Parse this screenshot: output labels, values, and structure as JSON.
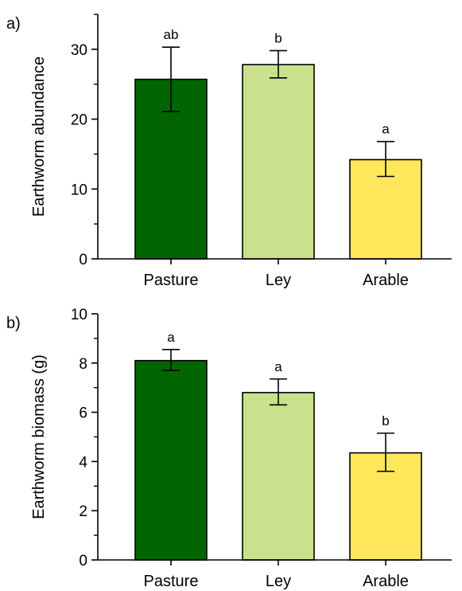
{
  "chart_data": [
    {
      "type": "bar",
      "panel_label": "a)",
      "ylabel": "Earthworm abundance",
      "ylim": [
        0,
        35
      ],
      "yticks": [
        0,
        10,
        20,
        30
      ],
      "minor_ticks": [
        5,
        15,
        25,
        35
      ],
      "categories": [
        "Pasture",
        "Ley",
        "Arable"
      ],
      "values": [
        25.7,
        27.8,
        14.2
      ],
      "err_low": [
        21.1,
        25.9,
        11.8
      ],
      "err_high": [
        30.3,
        29.8,
        16.8
      ],
      "annotations": [
        "ab",
        "b",
        "a"
      ],
      "colors": [
        "#006400",
        "#c9e18c",
        "#ffe75c"
      ]
    },
    {
      "type": "bar",
      "panel_label": "b)",
      "ylabel": "Earthworm biomass (g)",
      "ylim": [
        0,
        10
      ],
      "yticks": [
        0,
        2,
        4,
        6,
        8,
        10
      ],
      "minor_ticks": [
        1,
        3,
        5,
        7,
        9
      ],
      "categories": [
        "Pasture",
        "Ley",
        "Arable"
      ],
      "values": [
        8.1,
        6.8,
        4.35
      ],
      "err_low": [
        7.7,
        6.3,
        3.6
      ],
      "err_high": [
        8.55,
        7.35,
        5.15
      ],
      "annotations": [
        "a",
        "a",
        "b"
      ],
      "colors": [
        "#006400",
        "#c9e18c",
        "#ffe75c"
      ]
    }
  ]
}
